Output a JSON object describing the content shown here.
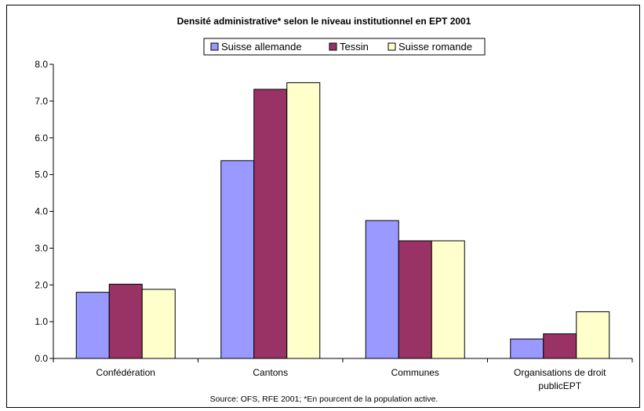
{
  "chart_data": {
    "type": "bar",
    "title": "Densité administrative* selon le niveau institutionnel en EPT 2001",
    "xlabel": "",
    "ylabel": "",
    "categories": [
      "Confédération",
      "Cantons",
      "Communes",
      "Organisations de droit publicEPT"
    ],
    "category_lines": [
      [
        "Confédération"
      ],
      [
        "Cantons"
      ],
      [
        "Communes"
      ],
      [
        "Organisations de droit",
        "publicEPT"
      ]
    ],
    "series": [
      {
        "name": "Suisse allemande",
        "color": "#9999ff",
        "values": [
          1.8,
          5.38,
          3.75,
          0.53
        ]
      },
      {
        "name": "Tessin",
        "color": "#993366",
        "values": [
          2.02,
          7.32,
          3.2,
          0.67
        ]
      },
      {
        "name": "Suisse romande",
        "color": "#ffffcc",
        "values": [
          1.88,
          7.5,
          3.2,
          1.27
        ]
      }
    ],
    "ylim": [
      0,
      8
    ],
    "yticks": [
      "0.0",
      "1.0",
      "2.0",
      "3.0",
      "4.0",
      "5.0",
      "6.0",
      "7.0",
      "8.0"
    ],
    "grid": false,
    "legend_position": "top",
    "source": "Source: OFS, RFE 2001; *En pourcent de la population active."
  }
}
